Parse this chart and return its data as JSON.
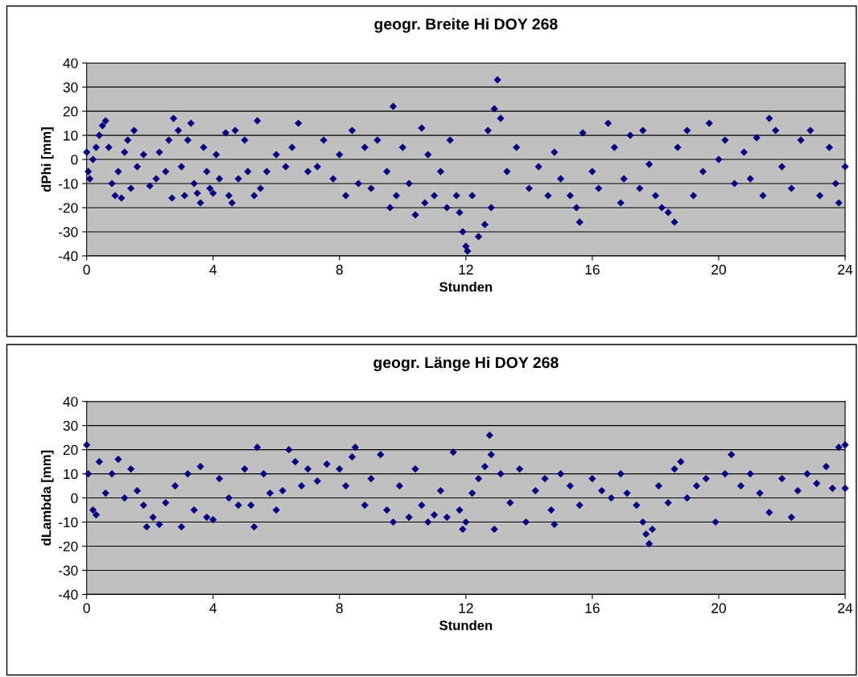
{
  "chart_data": [
    {
      "type": "scatter",
      "title": "geogr. Breite Hi DOY 268",
      "xlabel": "Stunden",
      "ylabel": "dPhi [mm]",
      "xlim": [
        0,
        24
      ],
      "xticks": [
        0,
        4,
        8,
        12,
        16,
        20,
        24
      ],
      "ylim": [
        -40,
        40
      ],
      "yticks": [
        -40,
        -30,
        -20,
        -10,
        0,
        10,
        20,
        30,
        40
      ],
      "grid": "y",
      "marker": "diamond",
      "series": [
        {
          "color": "#000080",
          "x": [
            0.0,
            0.05,
            0.1,
            0.2,
            0.3,
            0.4,
            0.5,
            0.6,
            0.7,
            0.8,
            0.9,
            1.0,
            1.1,
            1.2,
            1.3,
            1.4,
            1.5,
            1.6,
            1.8,
            2.0,
            2.2,
            2.3,
            2.5,
            2.6,
            2.7,
            2.75,
            2.9,
            3.0,
            3.1,
            3.2,
            3.3,
            3.4,
            3.5,
            3.6,
            3.7,
            3.8,
            3.9,
            4.0,
            4.1,
            4.2,
            4.4,
            4.5,
            4.6,
            4.7,
            4.8,
            5.0,
            5.1,
            5.3,
            5.4,
            5.5,
            5.7,
            6.0,
            6.3,
            6.5,
            6.7,
            7.0,
            7.3,
            7.5,
            7.8,
            8.0,
            8.2,
            8.4,
            8.6,
            8.8,
            9.0,
            9.2,
            9.5,
            9.6,
            9.7,
            9.8,
            10.0,
            10.2,
            10.4,
            10.6,
            10.7,
            10.8,
            11.0,
            11.2,
            11.4,
            11.5,
            11.7,
            11.8,
            11.9,
            12.0,
            12.05,
            12.2,
            12.4,
            12.6,
            12.7,
            12.8,
            12.9,
            13.0,
            13.1,
            13.3,
            13.6,
            14.0,
            14.3,
            14.6,
            14.8,
            15.0,
            15.3,
            15.5,
            15.6,
            15.7,
            16.0,
            16.2,
            16.5,
            16.7,
            16.9,
            17.0,
            17.2,
            17.5,
            17.6,
            17.8,
            18.0,
            18.2,
            18.4,
            18.6,
            18.7,
            19.0,
            19.2,
            19.5,
            19.7,
            20.0,
            20.2,
            20.5,
            20.8,
            21.0,
            21.2,
            21.4,
            21.6,
            21.8,
            22.0,
            22.3,
            22.6,
            22.9,
            23.2,
            23.5,
            23.7,
            23.8,
            24.0
          ],
          "values": [
            3,
            -5,
            -8,
            0,
            5,
            10,
            14,
            16,
            5,
            -10,
            -15,
            -5,
            -16,
            3,
            8,
            -12,
            12,
            -3,
            2,
            -11,
            -8,
            3,
            -5,
            8,
            -16,
            17,
            12,
            -3,
            -15,
            8,
            15,
            -10,
            -14,
            -18,
            5,
            -5,
            -12,
            -14,
            2,
            -8,
            11,
            -15,
            -18,
            12,
            -8,
            8,
            -5,
            -15,
            16,
            -12,
            -5,
            2,
            -3,
            5,
            15,
            -5,
            -3,
            8,
            -8,
            2,
            -15,
            12,
            -10,
            5,
            -12,
            8,
            -5,
            -20,
            22,
            -15,
            5,
            -10,
            -23,
            13,
            -18,
            2,
            -15,
            -5,
            -20,
            8,
            -15,
            -22,
            -30,
            -36,
            -38,
            -15,
            -32,
            -27,
            12,
            -20,
            21,
            33,
            17,
            -5,
            5,
            -12,
            -3,
            -15,
            3,
            -8,
            -15,
            -20,
            -26,
            11,
            -5,
            -12,
            15,
            5,
            -18,
            -8,
            10,
            -12,
            12,
            -2,
            -15,
            -20,
            -22,
            -26,
            5,
            12,
            -15,
            -5,
            15,
            0,
            8,
            -10,
            3,
            -8,
            9,
            -15,
            17,
            12,
            -3,
            -12,
            8,
            12,
            -15,
            5,
            -10,
            -18,
            -3
          ]
        }
      ]
    },
    {
      "type": "scatter",
      "title": "geogr. Länge Hi DOY 268",
      "xlabel": "Stunden",
      "ylabel": "dLambda [mm]",
      "xlim": [
        0,
        24
      ],
      "xticks": [
        0,
        4,
        8,
        12,
        16,
        20,
        24
      ],
      "ylim": [
        -40,
        40
      ],
      "yticks": [
        -40,
        -30,
        -20,
        -10,
        0,
        10,
        20,
        30,
        40
      ],
      "grid": "y",
      "marker": "diamond",
      "series": [
        {
          "color": "#000080",
          "x": [
            0.0,
            0.05,
            0.2,
            0.3,
            0.4,
            0.6,
            0.8,
            1.0,
            1.2,
            1.4,
            1.6,
            1.8,
            1.9,
            2.1,
            2.3,
            2.5,
            2.8,
            3.0,
            3.2,
            3.4,
            3.6,
            3.8,
            4.0,
            4.2,
            4.5,
            4.8,
            5.0,
            5.2,
            5.3,
            5.4,
            5.6,
            5.8,
            6.0,
            6.2,
            6.4,
            6.6,
            6.8,
            7.0,
            7.3,
            7.6,
            8.0,
            8.2,
            8.4,
            8.5,
            8.8,
            9.0,
            9.3,
            9.5,
            9.7,
            9.9,
            10.2,
            10.4,
            10.6,
            10.8,
            11.0,
            11.2,
            11.4,
            11.6,
            11.8,
            11.9,
            12.0,
            12.2,
            12.4,
            12.6,
            12.75,
            12.8,
            12.9,
            13.1,
            13.4,
            13.7,
            13.9,
            14.2,
            14.5,
            14.7,
            14.8,
            15.0,
            15.3,
            15.6,
            16.0,
            16.3,
            16.6,
            16.9,
            17.1,
            17.4,
            17.6,
            17.7,
            17.8,
            17.9,
            18.1,
            18.4,
            18.6,
            18.8,
            19.0,
            19.3,
            19.6,
            19.9,
            20.2,
            20.4,
            20.7,
            21.0,
            21.3,
            21.6,
            22.0,
            22.3,
            22.5,
            22.8,
            23.1,
            23.4,
            23.6,
            23.8,
            24.0,
            24.0
          ],
          "values": [
            22,
            10,
            -5,
            -7,
            15,
            2,
            10,
            16,
            0,
            12,
            3,
            -3,
            -12,
            -8,
            -11,
            -2,
            5,
            -12,
            10,
            -5,
            13,
            -8,
            -9,
            8,
            0,
            -3,
            12,
            -3,
            -12,
            21,
            10,
            2,
            -5,
            3,
            20,
            15,
            5,
            12,
            7,
            14,
            12,
            5,
            17,
            21,
            -3,
            8,
            18,
            -5,
            -10,
            5,
            -8,
            12,
            -3,
            -10,
            -7,
            3,
            -8,
            19,
            -5,
            -13,
            -10,
            2,
            8,
            13,
            26,
            18,
            -13,
            10,
            -2,
            12,
            -10,
            3,
            8,
            -5,
            -11,
            10,
            5,
            -3,
            8,
            3,
            0,
            10,
            2,
            -3,
            -10,
            -15,
            -19,
            -13,
            5,
            -2,
            12,
            15,
            0,
            5,
            8,
            -10,
            10,
            18,
            5,
            10,
            2,
            -6,
            8,
            -8,
            3,
            10,
            6,
            13,
            4,
            21,
            22,
            4
          ]
        }
      ]
    }
  ]
}
